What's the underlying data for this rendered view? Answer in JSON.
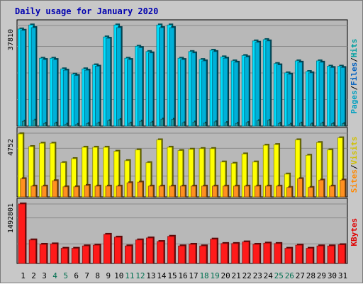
{
  "colors": {
    "background": "#c8c8c8",
    "panel": "#b8b8b8",
    "grid": "#8a8a8a",
    "title": "#0000b0",
    "hits": "#00e0ff",
    "files": "#00b0d8",
    "pages": "#1fa0a8",
    "visits": "#ffff00",
    "sites": "#ff9020",
    "kbytes": "#ff1a1a",
    "weekend_label": "#007050",
    "label_hits": "#00a0a0",
    "label_files": "#0060c0",
    "label_pages": "#00a0c0",
    "label_sites": "#ff8800",
    "label_visits": "#d0c000",
    "label_kbytes": "#e00000"
  },
  "chart_data": {
    "type": "bar",
    "title": "Daily usage for January 2020",
    "categories": [
      "1",
      "2",
      "3",
      "4",
      "5",
      "6",
      "7",
      "8",
      "9",
      "10",
      "11",
      "12",
      "13",
      "14",
      "15",
      "16",
      "17",
      "18",
      "19",
      "20",
      "21",
      "22",
      "23",
      "24",
      "25",
      "26",
      "27",
      "28",
      "29",
      "30",
      "31"
    ],
    "weekend_days": [
      "4",
      "5",
      "11",
      "12",
      "18",
      "19",
      "25",
      "26"
    ],
    "panels": [
      {
        "name": "hits-files-pages",
        "max_label": "37810",
        "ymax": 37810,
        "series_labels": [
          {
            "text": "Hits",
            "color_key": "label_hits"
          },
          {
            "text": "Files",
            "color_key": "label_files"
          },
          {
            "text": "Pages",
            "color_key": "label_pages"
          }
        ],
        "series": [
          {
            "name": "Hits",
            "color_key": "hits",
            "values": [
              36500,
              38000,
              25500,
              25500,
              21500,
              19500,
              21500,
              23000,
              33500,
              38000,
              25500,
              30000,
              28000,
              38000,
              38000,
              25500,
              28000,
              25000,
              28500,
              26000,
              24500,
              26500,
              32000,
              32500,
              23500,
              20000,
              24500,
              20500,
              24500,
              22500,
              22500
            ]
          },
          {
            "name": "Files",
            "color_key": "files",
            "values": [
              36000,
              37000,
              25000,
              25000,
              21000,
              19000,
              21000,
              22500,
              33000,
              37000,
              25000,
              29500,
              27500,
              37000,
              37000,
              25000,
              27500,
              24500,
              28000,
              25500,
              24000,
              26000,
              31500,
              32000,
              23000,
              19500,
              24000,
              20000,
              24000,
              22000,
              22000
            ]
          },
          {
            "name": "Pages",
            "color_key": "pages",
            "values": [
              1800,
              2200,
              1000,
              1100,
              700,
              600,
              900,
              1100,
              2000,
              2400,
              1100,
              1800,
              1400,
              2600,
              2500,
              1200,
              1500,
              1100,
              1600,
              1300,
              1000,
              1300,
              2000,
              2100,
              1000,
              700,
              1100,
              800,
              1100,
              900,
              900
            ]
          }
        ]
      },
      {
        "name": "visits-sites",
        "max_label": "4752",
        "ymax": 4752,
        "series_labels": [
          {
            "text": "Visits",
            "color_key": "label_visits"
          },
          {
            "text": "Sites",
            "color_key": "label_sites"
          }
        ],
        "series": [
          {
            "name": "Visits",
            "color_key": "visits",
            "values": [
              4700,
              3750,
              4000,
              4000,
              2550,
              2850,
              3700,
              3700,
              3700,
              3400,
              2700,
              3500,
              2550,
              4250,
              3700,
              3450,
              3550,
              3600,
              3600,
              2600,
              2500,
              3200,
              2600,
              3850,
              3900,
              1700,
              4250,
              3100,
              4050,
              3500,
              4400
            ]
          },
          {
            "name": "Sites",
            "color_key": "sites",
            "values": [
              1350,
              800,
              800,
              1200,
              750,
              750,
              850,
              800,
              800,
              800,
              1050,
              1100,
              800,
              800,
              800,
              800,
              800,
              800,
              800,
              800,
              800,
              800,
              800,
              800,
              800,
              700,
              1350,
              700,
              1250,
              800,
              1250
            ]
          }
        ]
      },
      {
        "name": "kbytes",
        "max_label": "1492801",
        "ymax": 1492801,
        "series_labels": [
          {
            "text": "KBytes",
            "color_key": "label_kbytes"
          }
        ],
        "series": [
          {
            "name": "KBytes",
            "color_key": "kbytes",
            "values": [
              1492801,
              590000,
              480000,
              490000,
              380000,
              380000,
              440000,
              460000,
              730000,
              660000,
              440000,
              590000,
              640000,
              550000,
              680000,
              440000,
              480000,
              440000,
              610000,
              500000,
              500000,
              540000,
              480000,
              510000,
              500000,
              380000,
              460000,
              380000,
              440000,
              440000,
              470000
            ]
          }
        ]
      }
    ]
  }
}
